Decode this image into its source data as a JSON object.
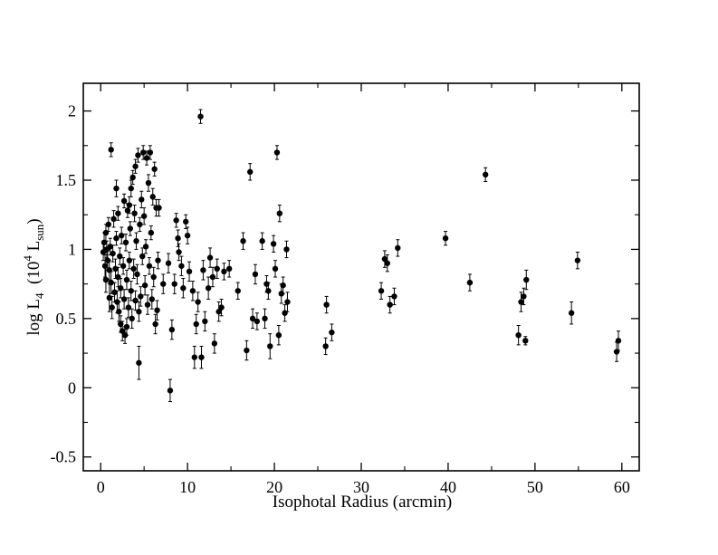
{
  "chart_data": {
    "type": "scatter",
    "xlabel": "Isophotal Radius (arcmin)",
    "ylabel": {
      "prefix": "log L",
      "sub": "4",
      "paren_open": "  (10",
      "sup": "4",
      "unit": " L",
      "unit_sub": "sun",
      "paren_close": ")"
    },
    "xlim": [
      -2,
      62
    ],
    "ylim": [
      -0.6,
      2.2
    ],
    "x_ticks": [
      0,
      10,
      20,
      30,
      40,
      50,
      60
    ],
    "x_tick_labels": [
      "0",
      "10",
      "20",
      "30",
      "40",
      "50",
      "60"
    ],
    "y_ticks": [
      -0.5,
      0,
      0.5,
      1,
      1.5,
      2
    ],
    "y_tick_labels": [
      "-0.5",
      "0",
      "0.5",
      "1",
      "1.5",
      "2"
    ],
    "x_minor_step": 5,
    "y_minor_step": 0.25,
    "grid": false,
    "marker": "filled-circle",
    "error_bars": "vertical",
    "color": "#000000",
    "points": [
      [
        0.3,
        0.98,
        0.06
      ],
      [
        0.4,
        1.05,
        0.07
      ],
      [
        0.5,
        0.88,
        0.08
      ],
      [
        0.6,
        1.12,
        0.06
      ],
      [
        0.6,
        0.78,
        0.09
      ],
      [
        0.7,
        1.0,
        0.06
      ],
      [
        0.8,
        0.92,
        0.07
      ],
      [
        0.9,
        1.18,
        0.05
      ],
      [
        1.0,
        0.65,
        0.1
      ],
      [
        1.0,
        0.85,
        0.07
      ],
      [
        1.1,
        1.02,
        0.06
      ],
      [
        1.2,
        0.76,
        0.08
      ],
      [
        1.2,
        1.72,
        0.05
      ],
      [
        1.3,
        0.58,
        0.08
      ],
      [
        1.4,
        0.97,
        0.06
      ],
      [
        1.5,
        1.22,
        0.06
      ],
      [
        1.6,
        0.69,
        0.07
      ],
      [
        1.7,
        0.86,
        0.07
      ],
      [
        1.8,
        1.44,
        0.06
      ],
      [
        1.8,
        1.08,
        0.05
      ],
      [
        1.9,
        0.62,
        0.08
      ],
      [
        2.0,
        0.8,
        0.07
      ],
      [
        2.0,
        1.26,
        0.05
      ],
      [
        2.1,
        0.55,
        0.07
      ],
      [
        2.2,
        0.95,
        0.06
      ],
      [
        2.3,
        0.72,
        0.07
      ],
      [
        2.3,
        0.46,
        0.06
      ],
      [
        2.4,
        1.1,
        0.06
      ],
      [
        2.5,
        0.41,
        0.07
      ],
      [
        2.6,
        0.88,
        0.06
      ],
      [
        2.7,
        1.35,
        0.05
      ],
      [
        2.7,
        0.64,
        0.07
      ],
      [
        2.8,
        0.38,
        0.06
      ],
      [
        2.9,
        1.05,
        0.06
      ],
      [
        3.0,
        0.44,
        0.06
      ],
      [
        3.0,
        0.78,
        0.07
      ],
      [
        3.1,
        1.28,
        0.05
      ],
      [
        3.2,
        0.58,
        0.07
      ],
      [
        3.3,
        1.32,
        0.06
      ],
      [
        3.3,
        0.92,
        0.06
      ],
      [
        3.4,
        1.15,
        0.05
      ],
      [
        3.5,
        0.7,
        0.07
      ],
      [
        3.5,
        1.44,
        0.06
      ],
      [
        3.6,
        0.5,
        0.07
      ],
      [
        3.7,
        1.52,
        0.05
      ],
      [
        3.8,
        0.86,
        0.07
      ],
      [
        3.9,
        1.26,
        0.06
      ],
      [
        4.0,
        0.63,
        0.07
      ],
      [
        4.0,
        1.6,
        0.05
      ],
      [
        4.1,
        1.06,
        0.06
      ],
      [
        4.2,
        0.82,
        0.07
      ],
      [
        4.3,
        1.68,
        0.05
      ],
      [
        4.4,
        0.18,
        0.12
      ],
      [
        4.4,
        0.55,
        0.07
      ],
      [
        4.5,
        1.18,
        0.05
      ],
      [
        4.6,
        0.66,
        0.07
      ],
      [
        4.7,
        1.36,
        0.06
      ],
      [
        4.8,
        0.95,
        0.06
      ],
      [
        4.9,
        1.7,
        0.05
      ],
      [
        5.0,
        1.24,
        0.06
      ],
      [
        5.1,
        0.74,
        0.07
      ],
      [
        5.2,
        1.02,
        0.05
      ],
      [
        5.3,
        1.66,
        0.05
      ],
      [
        5.4,
        0.6,
        0.07
      ],
      [
        5.5,
        1.48,
        0.06
      ],
      [
        5.6,
        0.88,
        0.06
      ],
      [
        5.7,
        1.7,
        0.05
      ],
      [
        5.8,
        1.12,
        0.05
      ],
      [
        5.9,
        0.64,
        0.07
      ],
      [
        6.0,
        1.38,
        0.06
      ],
      [
        6.1,
        0.8,
        0.07
      ],
      [
        6.2,
        1.58,
        0.05
      ],
      [
        6.3,
        0.46,
        0.07
      ],
      [
        6.4,
        1.3,
        0.06
      ],
      [
        6.5,
        0.56,
        0.07
      ],
      [
        6.6,
        0.92,
        0.06
      ],
      [
        6.7,
        1.3,
        0.06
      ],
      [
        7.2,
        0.75,
        0.07
      ],
      [
        7.8,
        0.9,
        0.07
      ],
      [
        8.0,
        -0.02,
        0.08
      ],
      [
        8.2,
        0.42,
        0.07
      ],
      [
        8.5,
        0.75,
        0.07
      ],
      [
        8.7,
        1.21,
        0.05
      ],
      [
        8.9,
        1.08,
        0.06
      ],
      [
        9.0,
        0.98,
        0.06
      ],
      [
        9.3,
        0.88,
        0.07
      ],
      [
        9.5,
        0.72,
        0.07
      ],
      [
        9.8,
        1.2,
        0.05
      ],
      [
        10.0,
        1.1,
        0.06
      ],
      [
        10.2,
        0.84,
        0.07
      ],
      [
        10.6,
        0.7,
        0.07
      ],
      [
        10.8,
        0.22,
        0.08
      ],
      [
        11.0,
        0.46,
        0.07
      ],
      [
        11.2,
        0.62,
        0.07
      ],
      [
        11.5,
        1.96,
        0.05
      ],
      [
        11.6,
        0.22,
        0.08
      ],
      [
        11.8,
        0.85,
        0.07
      ],
      [
        12.0,
        0.48,
        0.07
      ],
      [
        12.4,
        0.72,
        0.08
      ],
      [
        12.6,
        0.94,
        0.07
      ],
      [
        12.9,
        0.8,
        0.07
      ],
      [
        13.1,
        0.32,
        0.07
      ],
      [
        13.4,
        0.86,
        0.07
      ],
      [
        13.6,
        0.55,
        0.07
      ],
      [
        13.9,
        0.58,
        0.06
      ],
      [
        14.2,
        0.84,
        0.06
      ],
      [
        14.8,
        0.86,
        0.06
      ],
      [
        15.8,
        0.7,
        0.06
      ],
      [
        16.4,
        1.06,
        0.06
      ],
      [
        16.8,
        0.27,
        0.07
      ],
      [
        17.2,
        1.56,
        0.06
      ],
      [
        17.5,
        0.5,
        0.07
      ],
      [
        17.8,
        0.82,
        0.07
      ],
      [
        18.0,
        0.48,
        0.06
      ],
      [
        18.6,
        1.06,
        0.06
      ],
      [
        18.9,
        0.5,
        0.07
      ],
      [
        19.1,
        0.75,
        0.06
      ],
      [
        19.3,
        0.7,
        0.06
      ],
      [
        19.5,
        0.3,
        0.09
      ],
      [
        19.9,
        1.04,
        0.06
      ],
      [
        20.1,
        0.86,
        0.06
      ],
      [
        20.3,
        1.7,
        0.05
      ],
      [
        20.5,
        0.38,
        0.07
      ],
      [
        20.6,
        1.26,
        0.06
      ],
      [
        20.8,
        0.68,
        0.07
      ],
      [
        21.0,
        0.74,
        0.06
      ],
      [
        21.2,
        0.54,
        0.06
      ],
      [
        21.4,
        1.0,
        0.06
      ],
      [
        21.5,
        0.62,
        0.07
      ],
      [
        25.9,
        0.3,
        0.06
      ],
      [
        26.0,
        0.6,
        0.06
      ],
      [
        26.6,
        0.4,
        0.06
      ],
      [
        32.3,
        0.7,
        0.06
      ],
      [
        32.7,
        0.93,
        0.06
      ],
      [
        33.0,
        0.9,
        0.06
      ],
      [
        33.3,
        0.6,
        0.06
      ],
      [
        33.8,
        0.66,
        0.06
      ],
      [
        34.2,
        1.01,
        0.06
      ],
      [
        39.7,
        1.08,
        0.05
      ],
      [
        42.5,
        0.76,
        0.06
      ],
      [
        44.3,
        1.54,
        0.05
      ],
      [
        48.1,
        0.38,
        0.07
      ],
      [
        48.4,
        0.62,
        0.07
      ],
      [
        48.7,
        0.66,
        0.06
      ],
      [
        48.9,
        0.34,
        0.03
      ],
      [
        49.0,
        0.78,
        0.07
      ],
      [
        54.2,
        0.54,
        0.08
      ],
      [
        54.9,
        0.92,
        0.06
      ],
      [
        59.4,
        0.26,
        0.07
      ],
      [
        59.6,
        0.34,
        0.07
      ]
    ]
  }
}
